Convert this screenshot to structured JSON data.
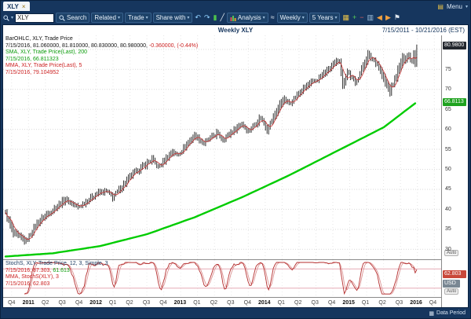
{
  "window": {
    "tab": "XLY",
    "menu": "Menu"
  },
  "toolbar": {
    "symbol_value": "XLY",
    "items": [
      {
        "kind": "btn",
        "label": "Search",
        "icon": "search-icon"
      },
      {
        "kind": "btn",
        "label": "Related",
        "arrow": true
      },
      {
        "kind": "btn",
        "label": "Trade",
        "arrow": true
      },
      {
        "kind": "btn",
        "label": "Share with",
        "arrow": true
      },
      {
        "kind": "ico",
        "glyph": "↶",
        "color": "#8fd0ff",
        "name": "undo-icon"
      },
      {
        "kind": "ico",
        "glyph": "↷",
        "color": "#8fd0ff",
        "name": "redo-icon"
      },
      {
        "kind": "ico",
        "glyph": "▮",
        "color": "#4cc24c",
        "name": "candlestick-chart-icon"
      },
      {
        "kind": "ico",
        "glyph": "╱",
        "color": "#e0e8f0",
        "name": "line-chart-icon"
      },
      {
        "kind": "btn",
        "label": "Analysis",
        "icon": "analysis-icon",
        "arrow": true
      },
      {
        "kind": "ico",
        "glyph": "≈",
        "color": "#e0e8f0",
        "name": "wave-indicator-icon"
      },
      {
        "kind": "btn",
        "label": "Weekly",
        "arrow": true
      },
      {
        "kind": "btn",
        "label": "5 Years",
        "arrow": true
      },
      {
        "kind": "ico",
        "glyph": "▦",
        "color": "#e8c24a",
        "name": "calendar-icon"
      },
      {
        "kind": "ico",
        "glyph": "+",
        "color": "#57d057",
        "name": "zoom-in-icon"
      },
      {
        "kind": "ico",
        "glyph": "−",
        "color": "#e06060",
        "name": "zoom-out-icon"
      },
      {
        "kind": "ico",
        "glyph": "▥",
        "color": "#9fc0dd",
        "name": "layout-icon"
      },
      {
        "kind": "ico",
        "glyph": "◀",
        "color": "#f0a040",
        "name": "arrow-left-icon"
      },
      {
        "kind": "ico",
        "glyph": "▶",
        "color": "#f0a040",
        "name": "arrow-right-icon"
      },
      {
        "kind": "ico",
        "glyph": "⚑",
        "color": "#e0e8f0",
        "name": "flag-icon"
      }
    ]
  },
  "header": {
    "title": "Weekly XLY",
    "date_range": "7/15/2011 - 10/21/2016 (EST)"
  },
  "scale": {
    "price_badge": "80.9800",
    "sma_badge": "66.8113",
    "stoch_badge": "62.803",
    "currency": "USD",
    "auto_label": "Auto",
    "y_labels": [
      75,
      70,
      65,
      60,
      55,
      50,
      45,
      40,
      35,
      30
    ]
  },
  "statusbar": {
    "data_period": "Data Period"
  },
  "price_legend": [
    [
      {
        "t": "BarOHLC, XLY, Trade Price",
        "c": "#111111"
      }
    ],
    [
      {
        "t": "7/15/2016, 81.060000, 81.810000, 80.830000, 80.980000, ",
        "c": "#111111"
      },
      {
        "t": "-0.360000, (-0.44%)",
        "c": "#cc2222"
      }
    ],
    [
      {
        "t": "SMA, XLY, Trade Price(Last), 200",
        "c": "#0b9c0b"
      }
    ],
    [
      {
        "t": "7/15/2016, 66.811323",
        "c": "#0b9c0b"
      }
    ],
    [
      {
        "t": "MMA, XLY, Trade Price(Last), 5",
        "c": "#cc2222"
      }
    ],
    [
      {
        "t": "7/15/2016, 79.104952",
        "c": "#cc2222"
      }
    ]
  ],
  "stoch_legend": [
    [
      {
        "t": "StochS, XLY, Trade Price, 12, 3, Simple, 3",
        "c": "#17375e"
      }
    ],
    [
      {
        "t": "7/15/2016, 87.303, ",
        "c": "#cc2222"
      },
      {
        "t": "61.613",
        "c": "#0b9c0b"
      }
    ],
    [
      {
        "t": "MMA, StochS(XLY), 3",
        "c": "#cc2222"
      }
    ],
    [
      {
        "t": "7/15/2016, 62.803",
        "c": "#cc2222"
      }
    ]
  ],
  "chart_data": {
    "type": "candlestick",
    "symbol": "XLY",
    "timeframe": "Weekly",
    "title": "Weekly XLY",
    "x_range_weeks": 275,
    "data_weeks": 261,
    "price_axis": {
      "min": 27.5,
      "max": 83.5,
      "ticks": [
        80,
        75,
        70,
        65,
        60,
        55,
        50,
        45,
        40,
        35,
        30
      ]
    },
    "x_tick_labels": [
      "Q4",
      "2011",
      "Q2",
      "Q3",
      "Q4",
      "2012",
      "Q1",
      "Q2",
      "Q3",
      "Q4",
      "2013",
      "Q1",
      "Q2",
      "Q3",
      "Q4",
      "2014",
      "Q1",
      "Q2",
      "Q3",
      "Q4",
      "2015",
      "Q1",
      "Q2",
      "Q3",
      "2016",
      "Q4"
    ],
    "close_anchors": [
      [
        0,
        39
      ],
      [
        5,
        34
      ],
      [
        13,
        32
      ],
      [
        20,
        36.5
      ],
      [
        24,
        38
      ],
      [
        38,
        42.5
      ],
      [
        46,
        40.5
      ],
      [
        58,
        44
      ],
      [
        64,
        44.5
      ],
      [
        68,
        43
      ],
      [
        80,
        48.5
      ],
      [
        93,
        52.5
      ],
      [
        97,
        50.5
      ],
      [
        106,
        54.5
      ],
      [
        109,
        53.5
      ],
      [
        120,
        58.5
      ],
      [
        126,
        56.5
      ],
      [
        134,
        59
      ],
      [
        138,
        57.5
      ],
      [
        150,
        61.5
      ],
      [
        154,
        59.5
      ],
      [
        162,
        63
      ],
      [
        166,
        60
      ],
      [
        176,
        67.5
      ],
      [
        180,
        66.5
      ],
      [
        190,
        70.5
      ],
      [
        198,
        72.5
      ],
      [
        208,
        76
      ],
      [
        212,
        77.5
      ],
      [
        214,
        71
      ],
      [
        217,
        74.5
      ],
      [
        222,
        71.5
      ],
      [
        230,
        78.5
      ],
      [
        236,
        76.5
      ],
      [
        240,
        72.5
      ],
      [
        244,
        69.5
      ],
      [
        252,
        77.5
      ],
      [
        256,
        78.5
      ],
      [
        258,
        77
      ],
      [
        259,
        79.5
      ],
      [
        260,
        76.5
      ],
      [
        261,
        80.98
      ]
    ],
    "sma200_anchors": [
      [
        0,
        28.2
      ],
      [
        30,
        29
      ],
      [
        60,
        30.8
      ],
      [
        90,
        33.8
      ],
      [
        120,
        38
      ],
      [
        150,
        43
      ],
      [
        180,
        48.5
      ],
      [
        210,
        54.5
      ],
      [
        240,
        60.5
      ],
      [
        261,
        66.81
      ]
    ],
    "last_bar": {
      "date": "7/15/2016",
      "open": 81.06,
      "high": 81.81,
      "low": 80.83,
      "close": 80.98,
      "change": -0.36,
      "change_pct": "-0.44%"
    },
    "sma200_last": 66.811323,
    "mma5_last": 79.104952,
    "stochastic": {
      "k_last": 87.303,
      "d_last": 61.613,
      "mma_last": 62.803,
      "upper_band": 80,
      "lower_band": 20,
      "period": 12,
      "smoothing": 3,
      "type": "Simple"
    }
  }
}
